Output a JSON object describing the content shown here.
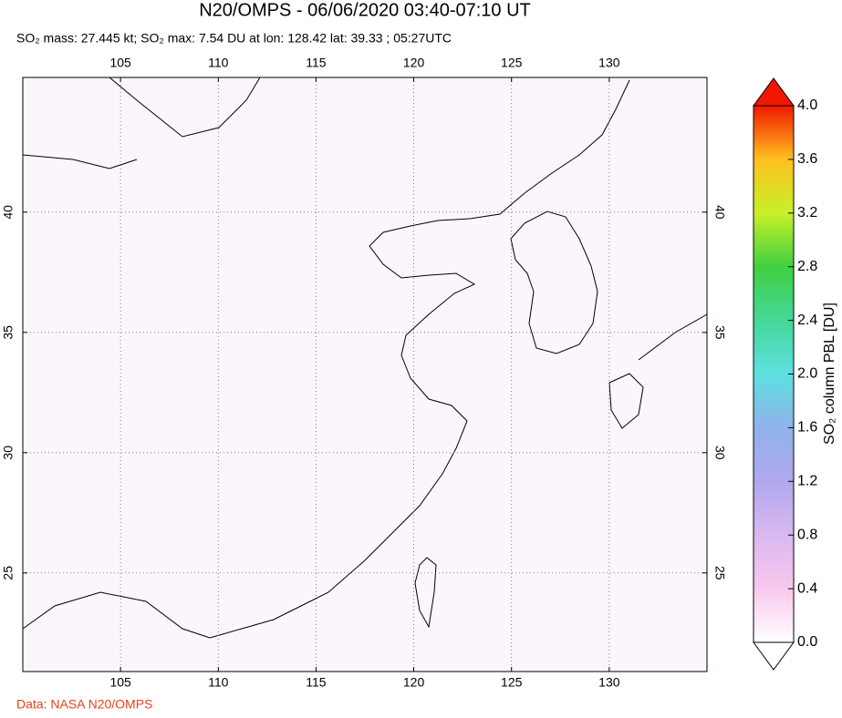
{
  "map": {
    "title": "N20/OMPS - 06/06/2020 03:40-07:10 UT",
    "subtitle": "SO₂ mass: 27.445 kt; SO₂ max: 7.54 DU at lon: 128.42 lat: 39.33 ; 05:27UTC",
    "xlim": [
      100,
      135
    ],
    "ylim": [
      20.9,
      45.6
    ],
    "xticks": [
      105,
      110,
      115,
      120,
      125,
      130
    ],
    "yticks": [
      25,
      30,
      35,
      40
    ],
    "grid": true,
    "colorbar": {
      "label": "SO₂ column PBL [DU]",
      "lim": [
        0,
        4
      ],
      "ticks": [
        {
          "value": 0,
          "label": "0.0"
        },
        0.4,
        0.8,
        1.2,
        1.6,
        {
          "value": 2,
          "label": "2.0"
        },
        2.4,
        2.8,
        3.2,
        3.6,
        {
          "value": 4,
          "label": "4.0"
        }
      ],
      "colors": [
        "#ffffff",
        "#f8c8ee",
        "#d9b8f0",
        "#b0a8ee",
        "#8fb2ea",
        "#5ee0e0",
        "#45d898",
        "#40d040",
        "#c8f028",
        "#ffc020",
        "#f01800"
      ]
    },
    "credit": "Data: NASA N20/OMPS"
  }
}
